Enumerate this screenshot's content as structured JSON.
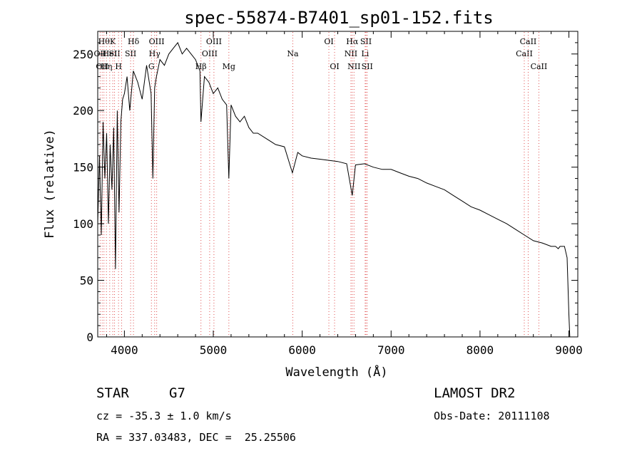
{
  "chart_data": {
    "type": "line",
    "title": "spec-55874-B7401_sp01-152.fits",
    "xlabel": "Wavelength (Å)",
    "ylabel": "Flux (relative)",
    "xlim": [
      3700,
      9100
    ],
    "ylim": [
      0,
      270
    ],
    "xticks": [
      4000,
      5000,
      6000,
      7000,
      8000,
      9000
    ],
    "yticks": [
      0,
      50,
      100,
      150,
      200,
      250
    ],
    "grid": false,
    "line_color": "#000000",
    "marker_line_color": "#e05050",
    "series": [
      {
        "x": [
          3700,
          3720,
          3740,
          3760,
          3780,
          3800,
          3820,
          3840,
          3860,
          3880,
          3900,
          3920,
          3940,
          3960,
          3980,
          4000,
          4030,
          4060,
          4100,
          4150,
          4200,
          4250,
          4300,
          4320,
          4340,
          4360,
          4400,
          4450,
          4500,
          4550,
          4600,
          4650,
          4700,
          4750,
          4800,
          4850,
          4861,
          4900,
          4950,
          5000,
          5050,
          5100,
          5150,
          5175,
          5200,
          5250,
          5300,
          5350,
          5400,
          5450,
          5500,
          5600,
          5700,
          5800,
          5890,
          5950,
          6000,
          6100,
          6200,
          6300,
          6400,
          6500,
          6563,
          6600,
          6700,
          6800,
          6900,
          7000,
          7100,
          7200,
          7300,
          7400,
          7500,
          7600,
          7700,
          7800,
          7900,
          8000,
          8100,
          8200,
          8300,
          8400,
          8500,
          8600,
          8700,
          8800,
          8850,
          8880,
          8900,
          8920,
          8950,
          8980,
          9000,
          9010
        ],
        "y": [
          100,
          160,
          90,
          190,
          140,
          180,
          100,
          170,
          130,
          185,
          60,
          200,
          110,
          190,
          210,
          215,
          230,
          200,
          235,
          225,
          210,
          240,
          215,
          140,
          220,
          230,
          245,
          240,
          250,
          255,
          260,
          250,
          255,
          250,
          245,
          235,
          190,
          230,
          225,
          215,
          220,
          210,
          205,
          140,
          205,
          195,
          190,
          195,
          185,
          180,
          180,
          175,
          170,
          168,
          145,
          163,
          160,
          158,
          157,
          156,
          155,
          153,
          125,
          152,
          153,
          150,
          148,
          148,
          145,
          142,
          140,
          136,
          133,
          130,
          125,
          120,
          115,
          112,
          108,
          104,
          100,
          95,
          90,
          85,
          83,
          80,
          80,
          78,
          80,
          80,
          80,
          70,
          20,
          0
        ]
      }
    ],
    "line_markers": [
      {
        "wavelength": 3727,
        "label": "OII",
        "row": 1
      },
      {
        "wavelength": 3750,
        "label": "OII",
        "row": 2
      },
      {
        "wavelength": 3770,
        "label": "Hθ",
        "row": 0
      },
      {
        "wavelength": 3798,
        "label": "Hη",
        "row": 2
      },
      {
        "wavelength": 3835,
        "label": "HeI",
        "row": 1
      },
      {
        "wavelength": 3869,
        "label": "K",
        "row": 0
      },
      {
        "wavelength": 3889,
        "label": "SII",
        "row": 1
      },
      {
        "wavelength": 3934,
        "label": "H",
        "row": 2
      },
      {
        "wavelength": 3969,
        "label": "",
        "row": 2
      },
      {
        "wavelength": 4070,
        "label": "SII",
        "row": 1
      },
      {
        "wavelength": 4102,
        "label": "Hδ",
        "row": 0
      },
      {
        "wavelength": 4304,
        "label": "G",
        "row": 2
      },
      {
        "wavelength": 4340,
        "label": "Hγ",
        "row": 1
      },
      {
        "wavelength": 4363,
        "label": "OIII",
        "row": 0
      },
      {
        "wavelength": 4861,
        "label": "Hβ",
        "row": 2
      },
      {
        "wavelength": 4959,
        "label": "OIII",
        "row": 1
      },
      {
        "wavelength": 5007,
        "label": "OIII",
        "row": 0
      },
      {
        "wavelength": 5175,
        "label": "Mg",
        "row": 2
      },
      {
        "wavelength": 5894,
        "label": "Na",
        "row": 1
      },
      {
        "wavelength": 6300,
        "label": "OI",
        "row": 0
      },
      {
        "wavelength": 6364,
        "label": "OI",
        "row": 2
      },
      {
        "wavelength": 6548,
        "label": "NII",
        "row": 1
      },
      {
        "wavelength": 6563,
        "label": "Hα",
        "row": 0
      },
      {
        "wavelength": 6583,
        "label": "NII",
        "row": 2
      },
      {
        "wavelength": 6708,
        "label": "Li",
        "row": 1
      },
      {
        "wavelength": 6717,
        "label": "SII",
        "row": 0
      },
      {
        "wavelength": 6731,
        "label": "SII",
        "row": 2
      },
      {
        "wavelength": 8498,
        "label": "CaII",
        "row": 1
      },
      {
        "wavelength": 8542,
        "label": "CaII",
        "row": 0
      },
      {
        "wavelength": 8662,
        "label": "CaII",
        "row": 2
      }
    ]
  },
  "info": {
    "class": "STAR",
    "subclass": "G7",
    "survey": "LAMOST DR2",
    "cz": "cz = -35.3 ± 1.0 km/s",
    "obs_date": "Obs-Date: 20111108",
    "coords": "RA = 337.03483, DEC =  25.25506"
  }
}
